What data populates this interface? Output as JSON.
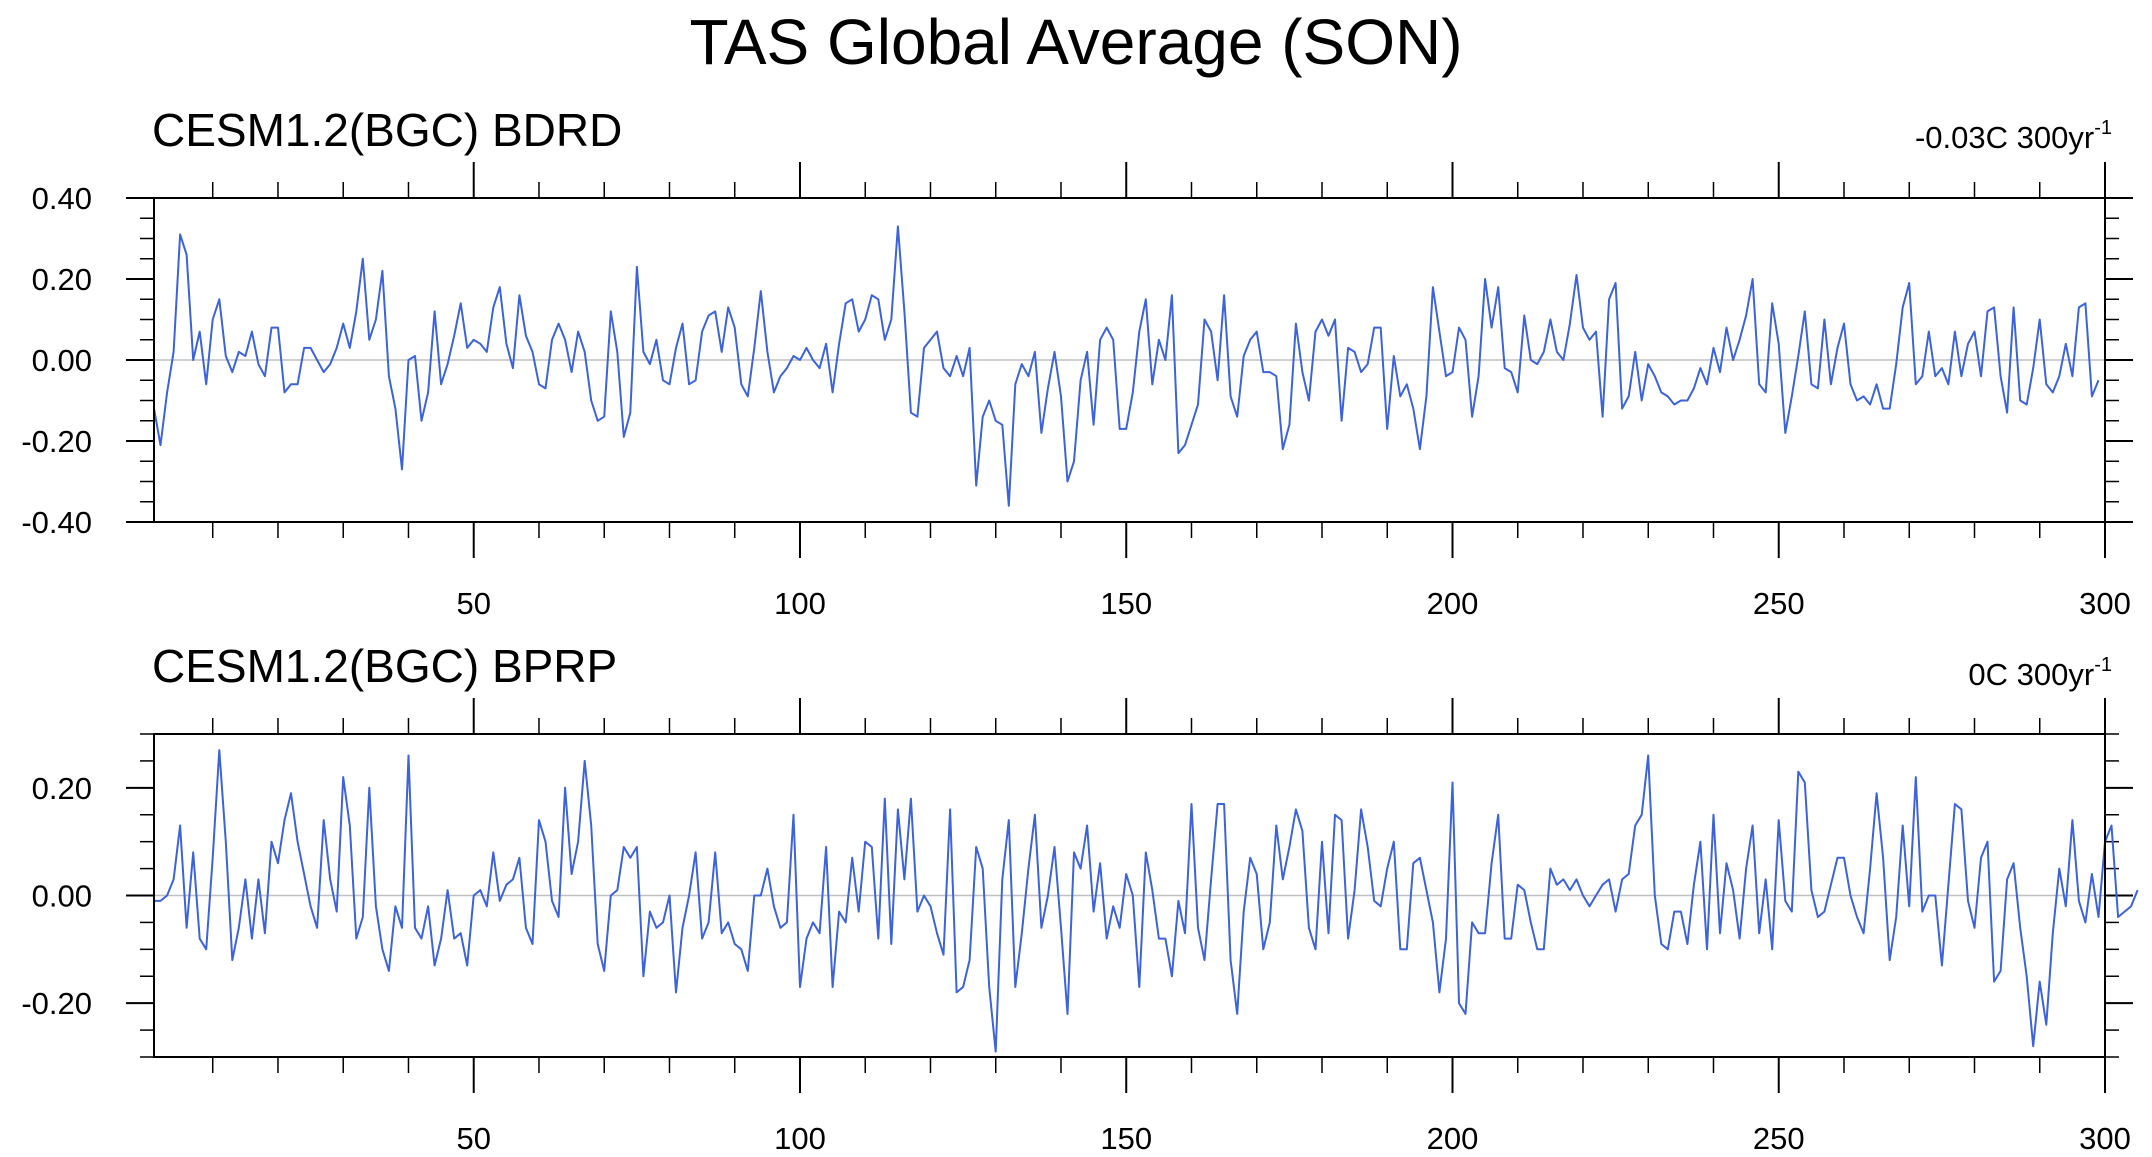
{
  "title": "TAS Global Average (SON)",
  "colors": {
    "series": "#3c63d9",
    "zero_line": "#c0c0c0",
    "frame": "#000000"
  },
  "chart_data": [
    {
      "type": "line",
      "title": "CESM1.2(BGC) BDRD",
      "trend": {
        "value": "-0.03C 300yr",
        "exponent": "-1"
      },
      "xlim": [
        1,
        300
      ],
      "ylim": [
        -0.4,
        0.4
      ],
      "x_ticks": [
        50,
        100,
        150,
        200,
        250,
        300
      ],
      "y_ticks": [
        "-0.40",
        "-0.20",
        "0.00",
        "0.20",
        "0.40"
      ],
      "reference_line": 0,
      "series": [
        {
          "values": [
            -0.12,
            -0.21,
            -0.08,
            0.02,
            0.31,
            0.26,
            0.0,
            0.07,
            -0.06,
            0.1,
            0.15,
            0.01,
            -0.03,
            0.02,
            0.01,
            0.07,
            -0.01,
            -0.04,
            0.08,
            0.08,
            -0.08,
            -0.06,
            -0.06,
            0.03,
            0.03,
            0.0,
            -0.03,
            -0.01,
            0.03,
            0.09,
            0.03,
            0.12,
            0.25,
            0.05,
            0.1,
            0.22,
            -0.04,
            -0.12,
            -0.27,
            0.0,
            0.01,
            -0.15,
            -0.08,
            0.12,
            -0.06,
            -0.01,
            0.06,
            0.14,
            0.03,
            0.05,
            0.04,
            0.02,
            0.13,
            0.18,
            0.04,
            -0.02,
            0.16,
            0.06,
            0.02,
            -0.06,
            -0.07,
            0.05,
            0.09,
            0.05,
            -0.03,
            0.07,
            0.02,
            -0.1,
            -0.15,
            -0.14,
            0.12,
            0.02,
            -0.19,
            -0.13,
            0.23,
            0.02,
            -0.01,
            0.05,
            -0.05,
            -0.06,
            0.03,
            0.09,
            -0.06,
            -0.05,
            0.07,
            0.11,
            0.12,
            0.02,
            0.13,
            0.08,
            -0.06,
            -0.09,
            0.03,
            0.17,
            0.02,
            -0.08,
            -0.04,
            -0.02,
            0.01,
            0.0,
            0.03,
            0.0,
            -0.02,
            0.04,
            -0.08,
            0.04,
            0.14,
            0.15,
            0.07,
            0.1,
            0.16,
            0.15,
            0.05,
            0.1,
            0.33,
            0.12,
            -0.13,
            -0.14,
            0.03,
            0.05,
            0.07,
            -0.02,
            -0.04,
            0.01,
            -0.04,
            0.03,
            -0.31,
            -0.14,
            -0.1,
            -0.15,
            -0.16,
            -0.36,
            -0.06,
            -0.01,
            -0.04,
            0.02,
            -0.18,
            -0.07,
            0.02,
            -0.09,
            -0.3,
            -0.25,
            -0.05,
            0.02,
            -0.16,
            0.05,
            0.08,
            0.05,
            -0.17,
            -0.17,
            -0.08,
            0.07,
            0.15,
            -0.06,
            0.05,
            0.0,
            0.16,
            -0.23,
            -0.21,
            -0.16,
            -0.11,
            0.1,
            0.07,
            -0.05,
            0.16,
            -0.09,
            -0.14,
            0.01,
            0.05,
            0.07,
            -0.03,
            -0.03,
            -0.04,
            -0.22,
            -0.16,
            0.09,
            -0.03,
            -0.1,
            0.07,
            0.1,
            0.06,
            0.1,
            -0.15,
            0.03,
            0.02,
            -0.03,
            -0.01,
            0.08,
            0.08,
            -0.17,
            0.01,
            -0.09,
            -0.06,
            -0.12,
            -0.22,
            -0.09,
            0.18,
            0.07,
            -0.04,
            -0.03,
            0.08,
            0.05,
            -0.14,
            -0.04,
            0.2,
            0.08,
            0.18,
            -0.02,
            -0.03,
            -0.08,
            0.11,
            0.0,
            -0.01,
            0.02,
            0.1,
            0.02,
            0.0,
            0.09,
            0.21,
            0.08,
            0.05,
            0.07,
            -0.14,
            0.15,
            0.19,
            -0.12,
            -0.09,
            0.02,
            -0.1,
            -0.01,
            -0.04,
            -0.08,
            -0.09,
            -0.11,
            -0.1,
            -0.1,
            -0.07,
            -0.02,
            -0.06,
            0.03,
            -0.03,
            0.08,
            0.0,
            0.05,
            0.11,
            0.2,
            -0.06,
            -0.08,
            0.14,
            0.04,
            -0.18,
            -0.09,
            0.01,
            0.12,
            -0.06,
            -0.07,
            0.1,
            -0.06,
            0.03,
            0.09,
            -0.06,
            -0.1,
            -0.09,
            -0.11,
            -0.06,
            -0.12,
            -0.12,
            -0.01,
            0.13,
            0.19,
            -0.06,
            -0.04,
            0.07,
            -0.04,
            -0.02,
            -0.06,
            0.07,
            -0.04,
            0.04,
            0.07,
            -0.04,
            0.12,
            0.13,
            -0.04,
            -0.13,
            0.13,
            -0.1,
            -0.11,
            -0.02,
            0.1,
            -0.06,
            -0.08,
            -0.04,
            0.04,
            -0.04,
            0.13,
            0.14,
            -0.09,
            -0.05
          ]
        }
      ]
    },
    {
      "type": "line",
      "title": "CESM1.2(BGC) BPRP",
      "trend": {
        "value": "0C 300yr",
        "exponent": "-1"
      },
      "xlim": [
        1,
        300
      ],
      "ylim": [
        -0.3,
        0.3
      ],
      "x_ticks": [
        50,
        100,
        150,
        200,
        250,
        300
      ],
      "y_ticks": [
        "-0.20",
        "0.00",
        "0.20"
      ],
      "reference_line": 0,
      "series": [
        {
          "values": [
            -0.01,
            -0.01,
            0.0,
            0.03,
            0.13,
            -0.06,
            0.08,
            -0.08,
            -0.1,
            0.07,
            0.27,
            0.1,
            -0.12,
            -0.06,
            0.03,
            -0.08,
            0.03,
            -0.07,
            0.1,
            0.06,
            0.14,
            0.19,
            0.1,
            0.04,
            -0.02,
            -0.06,
            0.14,
            0.03,
            -0.03,
            0.22,
            0.13,
            -0.08,
            -0.04,
            0.2,
            -0.02,
            -0.1,
            -0.14,
            -0.02,
            -0.06,
            0.26,
            -0.06,
            -0.08,
            -0.02,
            -0.13,
            -0.08,
            0.01,
            -0.08,
            -0.07,
            -0.13,
            0.0,
            0.01,
            -0.02,
            0.08,
            -0.01,
            0.02,
            0.03,
            0.07,
            -0.06,
            -0.09,
            0.14,
            0.1,
            -0.01,
            -0.04,
            0.2,
            0.04,
            0.1,
            0.25,
            0.13,
            -0.09,
            -0.14,
            0.0,
            0.01,
            0.09,
            0.07,
            0.09,
            -0.15,
            -0.03,
            -0.06,
            -0.05,
            0.0,
            -0.18,
            -0.06,
            0.0,
            0.08,
            -0.08,
            -0.05,
            0.08,
            -0.07,
            -0.05,
            -0.09,
            -0.1,
            -0.14,
            0.0,
            0.0,
            0.05,
            -0.02,
            -0.06,
            -0.05,
            0.15,
            -0.17,
            -0.08,
            -0.05,
            -0.07,
            0.09,
            -0.17,
            -0.03,
            -0.05,
            0.07,
            -0.03,
            0.1,
            0.09,
            -0.08,
            0.18,
            -0.09,
            0.16,
            0.03,
            0.18,
            -0.03,
            0.0,
            -0.02,
            -0.07,
            -0.11,
            0.16,
            -0.18,
            -0.17,
            -0.12,
            0.09,
            0.05,
            -0.17,
            -0.29,
            0.03,
            0.14,
            -0.17,
            -0.07,
            0.05,
            0.15,
            -0.06,
            0.0,
            0.09,
            -0.06,
            -0.22,
            0.08,
            0.05,
            0.13,
            -0.03,
            0.06,
            -0.08,
            -0.02,
            -0.06,
            0.04,
            0.0,
            -0.17,
            0.08,
            0.01,
            -0.08,
            -0.08,
            -0.15,
            -0.01,
            -0.07,
            0.17,
            -0.06,
            -0.12,
            0.03,
            0.17,
            0.17,
            -0.12,
            -0.22,
            -0.03,
            0.07,
            0.04,
            -0.1,
            -0.05,
            0.13,
            0.03,
            0.09,
            0.16,
            0.12,
            -0.06,
            -0.1,
            0.1,
            -0.07,
            0.15,
            0.14,
            -0.08,
            0.01,
            0.16,
            0.09,
            -0.01,
            -0.02,
            0.05,
            0.1,
            -0.1,
            -0.1,
            0.06,
            0.07,
            0.01,
            -0.05,
            -0.18,
            -0.08,
            0.21,
            -0.2,
            -0.22,
            -0.05,
            -0.07,
            -0.07,
            0.06,
            0.15,
            -0.08,
            -0.08,
            0.02,
            0.01,
            -0.05,
            -0.1,
            -0.1,
            0.05,
            0.02,
            0.03,
            0.01,
            0.03,
            0.0,
            -0.02,
            0.0,
            0.02,
            0.03,
            -0.03,
            0.03,
            0.04,
            0.13,
            0.15,
            0.26,
            0.0,
            -0.09,
            -0.1,
            -0.03,
            -0.03,
            -0.09,
            0.02,
            0.1,
            -0.1,
            0.15,
            -0.07,
            0.06,
            0.01,
            -0.08,
            0.05,
            0.13,
            -0.07,
            0.03,
            -0.1,
            0.14,
            -0.01,
            -0.03,
            0.23,
            0.21,
            0.01,
            -0.04,
            -0.03,
            0.02,
            0.07,
            0.07,
            0.0,
            -0.04,
            -0.07,
            0.05,
            0.19,
            0.07,
            -0.12,
            -0.04,
            0.13,
            -0.02,
            0.22,
            -0.03,
            0.0,
            0.0,
            -0.13,
            0.02,
            0.17,
            0.16,
            -0.01,
            -0.06,
            0.07,
            0.1,
            -0.16,
            -0.14,
            0.03,
            0.06,
            -0.06,
            -0.15,
            -0.28,
            -0.16,
            -0.24,
            -0.07,
            0.05,
            -0.02,
            0.14,
            -0.01,
            -0.05,
            0.04,
            -0.04,
            0.1,
            0.13,
            -0.04,
            -0.03,
            -0.02,
            0.01
          ]
        }
      ]
    }
  ]
}
